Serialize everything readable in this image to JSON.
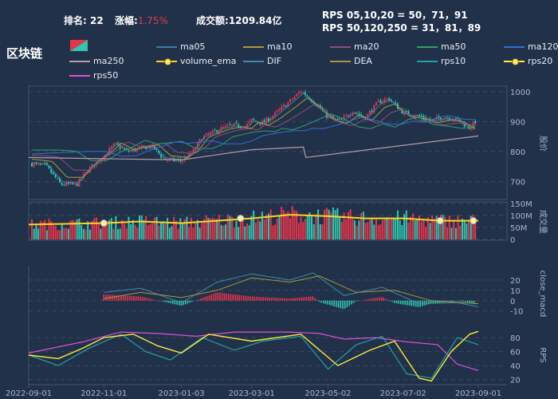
{
  "header": {
    "rank_label": "排名:",
    "rank_value": "22",
    "change_label": "涨幅:",
    "change_value": "1.75%",
    "amount_label": "成交额:",
    "amount_value": "1209.84亿",
    "rps_short": "RPS 05,10,20 = 50，71，91",
    "rps_long": "RPS 50,120,250 = 31，81，89"
  },
  "sector_name": "区块链",
  "legend": [
    {
      "name": "ma05",
      "color": "#3c7fa3",
      "kind": "line"
    },
    {
      "name": "ma10",
      "color": "#a89a3a",
      "kind": "line"
    },
    {
      "name": "ma20",
      "color": "#8e4d7a",
      "kind": "line"
    },
    {
      "name": "ma50",
      "color": "#2e9e6e",
      "kind": "line"
    },
    {
      "name": "ma120",
      "color": "#2f6fd1",
      "kind": "line"
    },
    {
      "name": "ma250",
      "color": "#b89aa8",
      "kind": "line"
    },
    {
      "name": "volume_ema",
      "color": "#ffd21f",
      "kind": "dotline"
    },
    {
      "name": "DIF",
      "color": "#3f8aa8",
      "kind": "line"
    },
    {
      "name": "DEA",
      "color": "#a8963c",
      "kind": "line"
    },
    {
      "name": "rps10",
      "color": "#1fa3a3",
      "kind": "line"
    },
    {
      "name": "rps20",
      "color": "#ffe93a",
      "kind": "dotline"
    },
    {
      "name": "rps50",
      "color": "#e04fd8",
      "kind": "line"
    }
  ],
  "colors": {
    "up": "#e8344a",
    "down": "#2fc7b0",
    "background": "#22314a"
  },
  "chart_data": [
    {
      "type": "candlestick",
      "panel": "price",
      "ylabel": "股价",
      "ylim": [
        640,
        1010
      ],
      "yticks": [
        700,
        800,
        900,
        1000
      ],
      "x_dates": [
        "2022-09-01",
        "2022-11-01",
        "2023-01-03",
        "2023-03-01",
        "2023-05-02",
        "2023-07-02",
        "2023-09-01"
      ],
      "close_series": [
        {
          "x": "2022-09-01",
          "y": 760
        },
        {
          "x": "2022-09-15",
          "y": 752
        },
        {
          "x": "2022-09-27",
          "y": 690
        },
        {
          "x": "2022-10-10",
          "y": 690
        },
        {
          "x": "2022-10-20",
          "y": 742
        },
        {
          "x": "2022-11-01",
          "y": 785
        },
        {
          "x": "2022-11-10",
          "y": 825
        },
        {
          "x": "2022-11-20",
          "y": 800
        },
        {
          "x": "2022-12-01",
          "y": 810
        },
        {
          "x": "2022-12-10",
          "y": 818
        },
        {
          "x": "2022-12-20",
          "y": 775
        },
        {
          "x": "2023-01-03",
          "y": 768
        },
        {
          "x": "2023-01-12",
          "y": 798
        },
        {
          "x": "2023-01-20",
          "y": 848
        },
        {
          "x": "2023-02-05",
          "y": 878
        },
        {
          "x": "2023-02-15",
          "y": 888
        },
        {
          "x": "2023-02-24",
          "y": 882
        },
        {
          "x": "2023-03-01",
          "y": 905
        },
        {
          "x": "2023-03-10",
          "y": 895
        },
        {
          "x": "2023-03-20",
          "y": 925
        },
        {
          "x": "2023-04-01",
          "y": 968
        },
        {
          "x": "2023-04-10",
          "y": 1002
        },
        {
          "x": "2023-04-20",
          "y": 968
        },
        {
          "x": "2023-05-02",
          "y": 915
        },
        {
          "x": "2023-05-12",
          "y": 902
        },
        {
          "x": "2023-05-22",
          "y": 935
        },
        {
          "x": "2023-06-01",
          "y": 912
        },
        {
          "x": "2023-06-12",
          "y": 965
        },
        {
          "x": "2023-06-20",
          "y": 978
        },
        {
          "x": "2023-07-02",
          "y": 930
        },
        {
          "x": "2023-07-15",
          "y": 918
        },
        {
          "x": "2023-07-25",
          "y": 905
        },
        {
          "x": "2023-08-05",
          "y": 915
        },
        {
          "x": "2023-08-15",
          "y": 908
        },
        {
          "x": "2023-08-25",
          "y": 878
        },
        {
          "x": "2023-09-01",
          "y": 912
        }
      ],
      "ma250": [
        {
          "x": "2022-09-01",
          "y": 780
        },
        {
          "x": "2023-01-03",
          "y": 772
        },
        {
          "x": "2023-03-01",
          "y": 806
        },
        {
          "x": "2023-04-12",
          "y": 815
        },
        {
          "x": "2023-04-14",
          "y": 780
        },
        {
          "x": "2023-09-01",
          "y": 852
        }
      ]
    },
    {
      "type": "bar",
      "panel": "volume",
      "ylabel": "成交量",
      "ylim": [
        0,
        150
      ],
      "yunit": "M",
      "yticks": [
        "0",
        "50M",
        "100M",
        "150M"
      ],
      "volume_ema": [
        {
          "x": "2022-09-01",
          "y": 62
        },
        {
          "x": "2022-11-01",
          "y": 68
        },
        {
          "x": "2022-12-01",
          "y": 75
        },
        {
          "x": "2023-01-03",
          "y": 68
        },
        {
          "x": "2023-02-01",
          "y": 78
        },
        {
          "x": "2023-03-01",
          "y": 88
        },
        {
          "x": "2023-04-01",
          "y": 103
        },
        {
          "x": "2023-05-02",
          "y": 97
        },
        {
          "x": "2023-06-01",
          "y": 88
        },
        {
          "x": "2023-07-02",
          "y": 88
        },
        {
          "x": "2023-08-01",
          "y": 78
        },
        {
          "x": "2023-09-01",
          "y": 78
        }
      ]
    },
    {
      "type": "line",
      "panel": "macd",
      "ylabel": "close_macd",
      "ylim": [
        -18,
        30
      ],
      "yticks": [
        -10,
        0,
        10,
        20
      ],
      "DIF": [
        {
          "x": "2022-11-01",
          "y": 8
        },
        {
          "x": "2022-12-01",
          "y": 12
        },
        {
          "x": "2023-01-03",
          "y": -2
        },
        {
          "x": "2023-02-01",
          "y": 18
        },
        {
          "x": "2023-03-01",
          "y": 26
        },
        {
          "x": "2023-04-01",
          "y": 20
        },
        {
          "x": "2023-04-20",
          "y": 27
        },
        {
          "x": "2023-05-15",
          "y": 5
        },
        {
          "x": "2023-06-15",
          "y": 13
        },
        {
          "x": "2023-07-15",
          "y": -3
        },
        {
          "x": "2023-08-15",
          "y": -2
        },
        {
          "x": "2023-09-01",
          "y": -6
        }
      ],
      "DEA": [
        {
          "x": "2022-11-01",
          "y": 2
        },
        {
          "x": "2022-12-01",
          "y": 8
        },
        {
          "x": "2023-01-03",
          "y": 3
        },
        {
          "x": "2023-02-01",
          "y": 10
        },
        {
          "x": "2023-03-01",
          "y": 22
        },
        {
          "x": "2023-04-01",
          "y": 18
        },
        {
          "x": "2023-04-25",
          "y": 24
        },
        {
          "x": "2023-05-25",
          "y": 8
        },
        {
          "x": "2023-06-25",
          "y": 10
        },
        {
          "x": "2023-07-25",
          "y": 0
        },
        {
          "x": "2023-09-01",
          "y": -3
        }
      ]
    },
    {
      "type": "line",
      "panel": "rps",
      "ylabel": "RPS",
      "ylim": [
        15,
        95
      ],
      "yticks": [
        20,
        40,
        60,
        80
      ],
      "rps10": [
        {
          "x": "2022-09-01",
          "y": 55
        },
        {
          "x": "2022-09-25",
          "y": 40
        },
        {
          "x": "2022-10-20",
          "y": 65
        },
        {
          "x": "2022-11-15",
          "y": 85
        },
        {
          "x": "2022-12-05",
          "y": 60
        },
        {
          "x": "2022-12-25",
          "y": 48
        },
        {
          "x": "2023-01-20",
          "y": 80
        },
        {
          "x": "2023-02-15",
          "y": 62
        },
        {
          "x": "2023-03-10",
          "y": 75
        },
        {
          "x": "2023-04-10",
          "y": 82
        },
        {
          "x": "2023-05-02",
          "y": 35
        },
        {
          "x": "2023-05-25",
          "y": 70
        },
        {
          "x": "2023-06-15",
          "y": 82
        },
        {
          "x": "2023-07-05",
          "y": 28
        },
        {
          "x": "2023-07-25",
          "y": 22
        },
        {
          "x": "2023-08-15",
          "y": 80
        },
        {
          "x": "2023-09-01",
          "y": 70
        }
      ],
      "rps20": [
        {
          "x": "2022-09-01",
          "y": 55
        },
        {
          "x": "2022-09-25",
          "y": 50
        },
        {
          "x": "2022-10-15",
          "y": 65
        },
        {
          "x": "2022-11-01",
          "y": 80
        },
        {
          "x": "2022-11-25",
          "y": 85
        },
        {
          "x": "2022-12-15",
          "y": 68
        },
        {
          "x": "2023-01-03",
          "y": 58
        },
        {
          "x": "2023-01-25",
          "y": 85
        },
        {
          "x": "2023-03-01",
          "y": 75
        },
        {
          "x": "2023-04-10",
          "y": 85
        },
        {
          "x": "2023-05-10",
          "y": 40
        },
        {
          "x": "2023-06-05",
          "y": 62
        },
        {
          "x": "2023-06-25",
          "y": 75
        },
        {
          "x": "2023-07-15",
          "y": 22
        },
        {
          "x": "2023-07-25",
          "y": 18
        },
        {
          "x": "2023-08-10",
          "y": 60
        },
        {
          "x": "2023-08-25",
          "y": 85
        },
        {
          "x": "2023-09-01",
          "y": 89
        }
      ],
      "rps50": [
        {
          "x": "2022-09-01",
          "y": 58
        },
        {
          "x": "2022-10-15",
          "y": 74
        },
        {
          "x": "2022-11-15",
          "y": 88
        },
        {
          "x": "2022-12-15",
          "y": 86
        },
        {
          "x": "2023-01-15",
          "y": 82
        },
        {
          "x": "2023-02-15",
          "y": 88
        },
        {
          "x": "2023-04-01",
          "y": 88
        },
        {
          "x": "2023-04-25",
          "y": 86
        },
        {
          "x": "2023-05-15",
          "y": 78
        },
        {
          "x": "2023-06-10",
          "y": 80
        },
        {
          "x": "2023-07-05",
          "y": 74
        },
        {
          "x": "2023-07-30",
          "y": 70
        },
        {
          "x": "2023-08-15",
          "y": 42
        },
        {
          "x": "2023-09-01",
          "y": 33
        }
      ]
    }
  ]
}
